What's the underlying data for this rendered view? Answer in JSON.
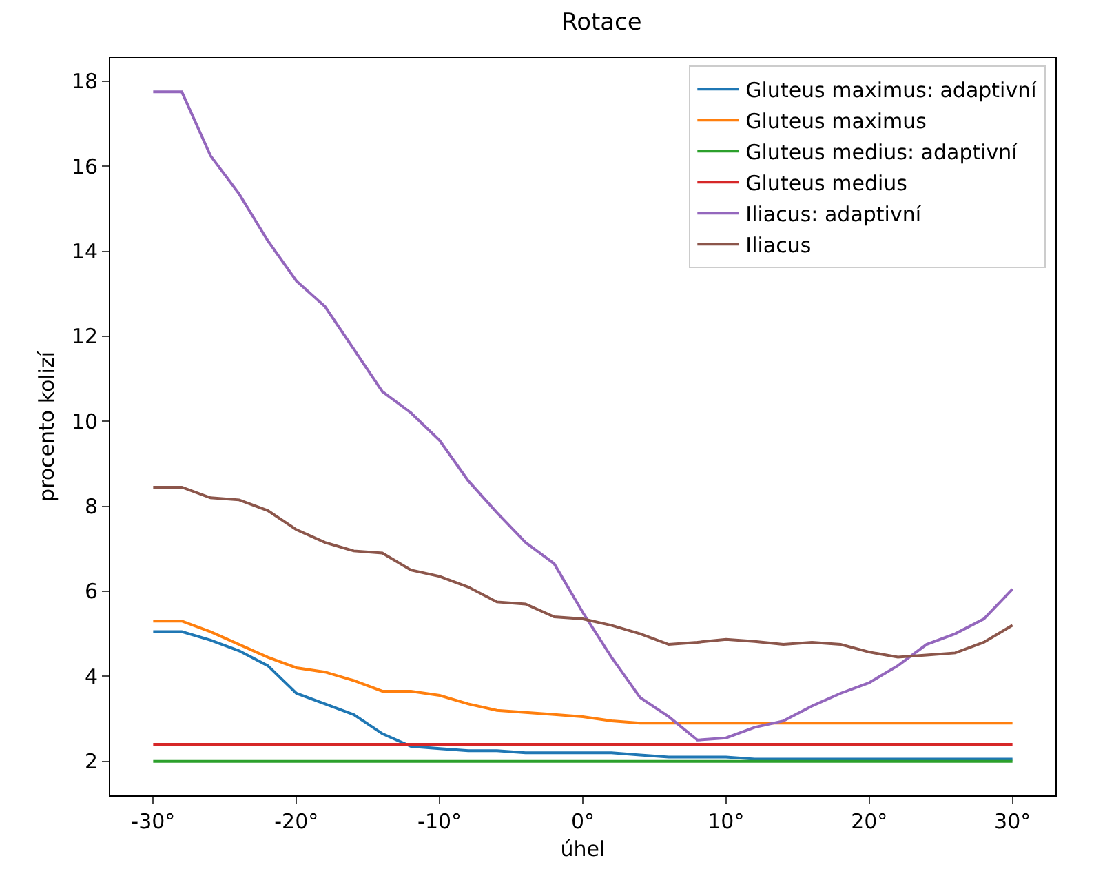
{
  "chart_data": {
    "type": "line",
    "title": "Rotace",
    "xlabel": "úhel",
    "ylabel": "procento kolizí",
    "x": [
      -30,
      -28,
      -26,
      -24,
      -22,
      -20,
      -18,
      -16,
      -14,
      -12,
      -10,
      -8,
      -6,
      -4,
      -2,
      0,
      2,
      4,
      6,
      8,
      10,
      12,
      14,
      16,
      18,
      20,
      22,
      24,
      26,
      28,
      30
    ],
    "series": [
      {
        "name": "Gluteus maximus: adaptivní",
        "color": "#1f77b4",
        "values": [
          5.05,
          5.05,
          4.85,
          4.6,
          4.25,
          3.6,
          3.35,
          3.1,
          2.65,
          2.35,
          2.3,
          2.25,
          2.25,
          2.2,
          2.2,
          2.2,
          2.2,
          2.15,
          2.1,
          2.1,
          2.1,
          2.05,
          2.05,
          2.05,
          2.05,
          2.05,
          2.05,
          2.05,
          2.05,
          2.05,
          2.05
        ]
      },
      {
        "name": "Gluteus maximus",
        "color": "#ff7f0e",
        "values": [
          5.3,
          5.3,
          5.05,
          4.75,
          4.45,
          4.2,
          4.1,
          3.9,
          3.65,
          3.65,
          3.55,
          3.35,
          3.2,
          3.15,
          3.1,
          3.05,
          2.95,
          2.9,
          2.9,
          2.9,
          2.9,
          2.9,
          2.9,
          2.9,
          2.9,
          2.9,
          2.9,
          2.9,
          2.9,
          2.9,
          2.9
        ]
      },
      {
        "name": "Gluteus medius: adaptivní",
        "color": "#2ca02c",
        "values": [
          2,
          2,
          2,
          2,
          2,
          2,
          2,
          2,
          2,
          2,
          2,
          2,
          2,
          2,
          2,
          2,
          2,
          2,
          2,
          2,
          2,
          2,
          2,
          2,
          2,
          2,
          2,
          2,
          2,
          2,
          2
        ]
      },
      {
        "name": "Gluteus medius",
        "color": "#d62728",
        "values": [
          2.4,
          2.4,
          2.4,
          2.4,
          2.4,
          2.4,
          2.4,
          2.4,
          2.4,
          2.4,
          2.4,
          2.4,
          2.4,
          2.4,
          2.4,
          2.4,
          2.4,
          2.4,
          2.4,
          2.4,
          2.4,
          2.4,
          2.4,
          2.4,
          2.4,
          2.4,
          2.4,
          2.4,
          2.4,
          2.4,
          2.4
        ]
      },
      {
        "name": "Iliacus: adaptivní",
        "color": "#9467bd",
        "values": [
          17.75,
          17.75,
          16.25,
          15.35,
          14.25,
          13.3,
          12.7,
          11.7,
          10.7,
          10.2,
          9.55,
          8.6,
          7.85,
          7.15,
          6.65,
          5.5,
          4.45,
          3.5,
          3.05,
          2.5,
          2.55,
          2.8,
          2.95,
          3.3,
          3.6,
          3.85,
          4.25,
          4.75,
          5.0,
          5.35,
          6.05
        ]
      },
      {
        "name": "Iliacus",
        "color": "#8c564b",
        "values": [
          8.45,
          8.45,
          8.2,
          8.15,
          7.9,
          7.45,
          7.15,
          6.95,
          6.9,
          6.5,
          6.35,
          6.1,
          5.75,
          5.7,
          5.4,
          5.35,
          5.2,
          5.0,
          4.75,
          4.8,
          4.87,
          4.82,
          4.75,
          4.8,
          4.75,
          4.57,
          4.45,
          4.5,
          4.55,
          4.8,
          5.2
        ]
      }
    ],
    "xlim": [
      -33,
      33
    ],
    "xticks": [
      {
        "value": -30,
        "label": "-30°"
      },
      {
        "value": -20,
        "label": "-20°"
      },
      {
        "value": -10,
        "label": "-10°"
      },
      {
        "value": 0,
        "label": "0°"
      },
      {
        "value": 10,
        "label": "10°"
      },
      {
        "value": 20,
        "label": "20°"
      },
      {
        "value": 30,
        "label": "30°"
      }
    ],
    "ylim": [
      1.2,
      18.55
    ],
    "yticks": [
      2,
      4,
      6,
      8,
      10,
      12,
      14,
      16,
      18
    ],
    "legend": "top right",
    "grid": false,
    "marker": "none",
    "line_style": "solid"
  }
}
